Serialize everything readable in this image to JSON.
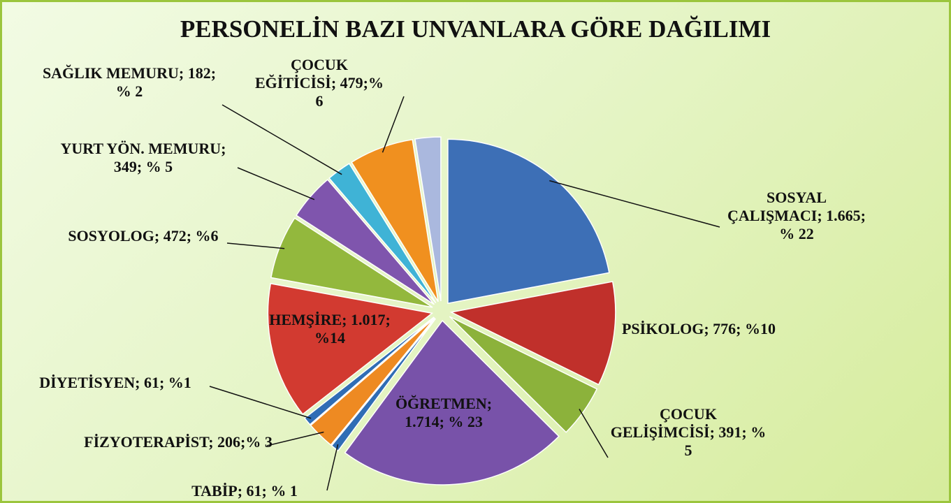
{
  "chart_data": {
    "type": "pie",
    "title": "PERSONELİN BAZI UNVANLARA GÖRE DAĞILIMI",
    "labels": [
      "SOSYAL ÇALIŞMACI; 1.665; % 22",
      "PSİKOLOG; 776; %10",
      "ÇOCUK GELİŞİMCİSİ; 391; % 5",
      "ÖĞRETMEN; 1.714; % 23",
      "TABİP; 61; % 1",
      "FİZYOTERAPİST; 206;% 3",
      "DİYETİSYEN; 61; %1",
      "HEMŞİRE; 1.017; %14",
      "SOSYOLOG; 472; %6",
      "YURT YÖN. MEMURU; 349; % 5",
      "SAĞLIK MEMURU; 182; % 2",
      "ÇOCUK EĞİTİCİSİ; 479;% 6",
      null
    ],
    "values": [
      1665,
      776,
      391,
      1714,
      61,
      206,
      61,
      1017,
      472,
      349,
      182,
      479,
      190
    ],
    "colors": [
      "#3d6fb6",
      "#c0302b",
      "#8cb23b",
      "#7852a9",
      "#2f6db5",
      "#ee8a22",
      "#2f6db5",
      "#d23a30",
      "#93b83d",
      "#7f55ad",
      "#3fb3d6",
      "#f0901f",
      "#aab8de"
    ]
  }
}
